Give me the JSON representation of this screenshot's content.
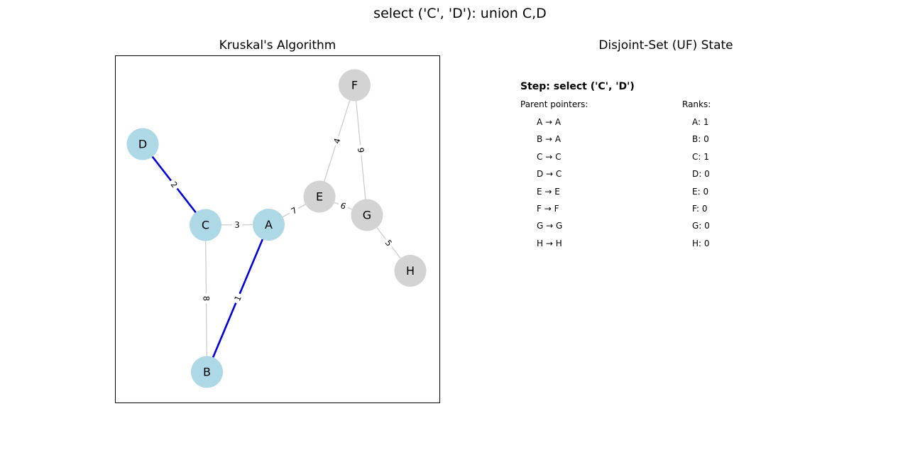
{
  "figure": {
    "suptitle": "select ('C', 'D'): union C,D"
  },
  "graph_panel": {
    "title": "Kruskal's Algorithm",
    "colors": {
      "visited_node": "#add8e6",
      "unvisited_node": "#d3d3d3",
      "selected_edge": "#0000dd",
      "default_edge": "#cccccc"
    },
    "nodes": [
      {
        "id": "A",
        "label": "A",
        "in_tree": true
      },
      {
        "id": "B",
        "label": "B",
        "in_tree": true
      },
      {
        "id": "C",
        "label": "C",
        "in_tree": true
      },
      {
        "id": "D",
        "label": "D",
        "in_tree": true
      },
      {
        "id": "E",
        "label": "E",
        "in_tree": false
      },
      {
        "id": "F",
        "label": "F",
        "in_tree": false
      },
      {
        "id": "G",
        "label": "G",
        "in_tree": false
      },
      {
        "id": "H",
        "label": "H",
        "in_tree": false
      }
    ],
    "edges": [
      {
        "u": "A",
        "v": "B",
        "weight": "1",
        "selected": true
      },
      {
        "u": "C",
        "v": "D",
        "weight": "2",
        "selected": true
      },
      {
        "u": "A",
        "v": "C",
        "weight": "3",
        "selected": false
      },
      {
        "u": "E",
        "v": "F",
        "weight": "4",
        "selected": false
      },
      {
        "u": "G",
        "v": "H",
        "weight": "5",
        "selected": false
      },
      {
        "u": "E",
        "v": "G",
        "weight": "6",
        "selected": false
      },
      {
        "u": "A",
        "v": "E",
        "weight": "7",
        "selected": false
      },
      {
        "u": "B",
        "v": "C",
        "weight": "8",
        "selected": false
      },
      {
        "u": "F",
        "v": "G",
        "weight": "9",
        "selected": false
      }
    ]
  },
  "uf_panel": {
    "title": "Disjoint-Set (UF) State",
    "step_text": "Step: select ('C', 'D')",
    "parents_header": "Parent pointers:",
    "ranks_header": "Ranks:",
    "parents": [
      "A → A",
      "B → A",
      "C → C",
      "D → C",
      "E → E",
      "F → F",
      "G → G",
      "H → H"
    ],
    "ranks": [
      "A: 1",
      "B: 0",
      "C: 1",
      "D: 0",
      "E: 0",
      "F: 0",
      "G: 0",
      "H: 0"
    ]
  }
}
